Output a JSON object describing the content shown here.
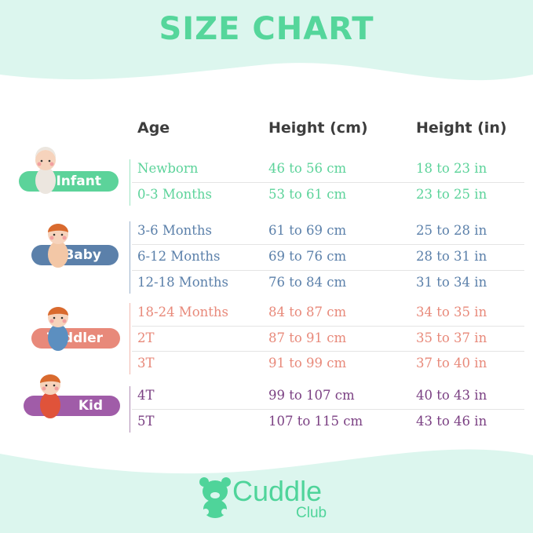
{
  "title": "SIZE CHART",
  "headers": {
    "age": "Age",
    "cm": "Height (cm)",
    "in": "Height (in)"
  },
  "colors": {
    "mint": "#dcf6ee",
    "title": "#55d69b",
    "infant": "#5cd39a",
    "baby": "#5b80aa",
    "toddler": "#e8897a",
    "kid": "#a05ca8",
    "kid_text": "#7a3f82"
  },
  "groups": [
    {
      "label": "Infant",
      "color_key": "infant",
      "rows": [
        {
          "age": "Newborn",
          "cm": "46 to 56 cm",
          "in": "18 to 23 in"
        },
        {
          "age": "0-3 Months",
          "cm": "53 to 61 cm",
          "in": "23 to 25 in"
        }
      ]
    },
    {
      "label": "Baby",
      "color_key": "baby",
      "rows": [
        {
          "age": "3-6 Months",
          "cm": "61 to 69 cm",
          "in": "25 to 28 in"
        },
        {
          "age": "6-12 Months",
          "cm": "69 to 76 cm",
          "in": "28 to 31 in"
        },
        {
          "age": "12-18 Months",
          "cm": "76 to 84 cm",
          "in": "31 to 34 in"
        }
      ]
    },
    {
      "label": "Toddler",
      "color_key": "toddler",
      "rows": [
        {
          "age": "18-24 Months",
          "cm": "84 to 87 cm",
          "in": "34 to 35 in"
        },
        {
          "age": "2T",
          "cm": "87 to 91 cm",
          "in": "35 to 37 in"
        },
        {
          "age": "3T",
          "cm": "91 to 99 cm",
          "in": "37 to 40 in"
        }
      ]
    },
    {
      "label": "Kid",
      "color_key": "kid_text",
      "rows": [
        {
          "age": "4T",
          "cm": "99 to 107 cm",
          "in": "40 to 43 in"
        },
        {
          "age": "5T",
          "cm": "107 to 115 cm",
          "in": "43 to 46 in"
        }
      ]
    }
  ],
  "logo": {
    "line1": "Cuddle",
    "line2": "Club"
  }
}
